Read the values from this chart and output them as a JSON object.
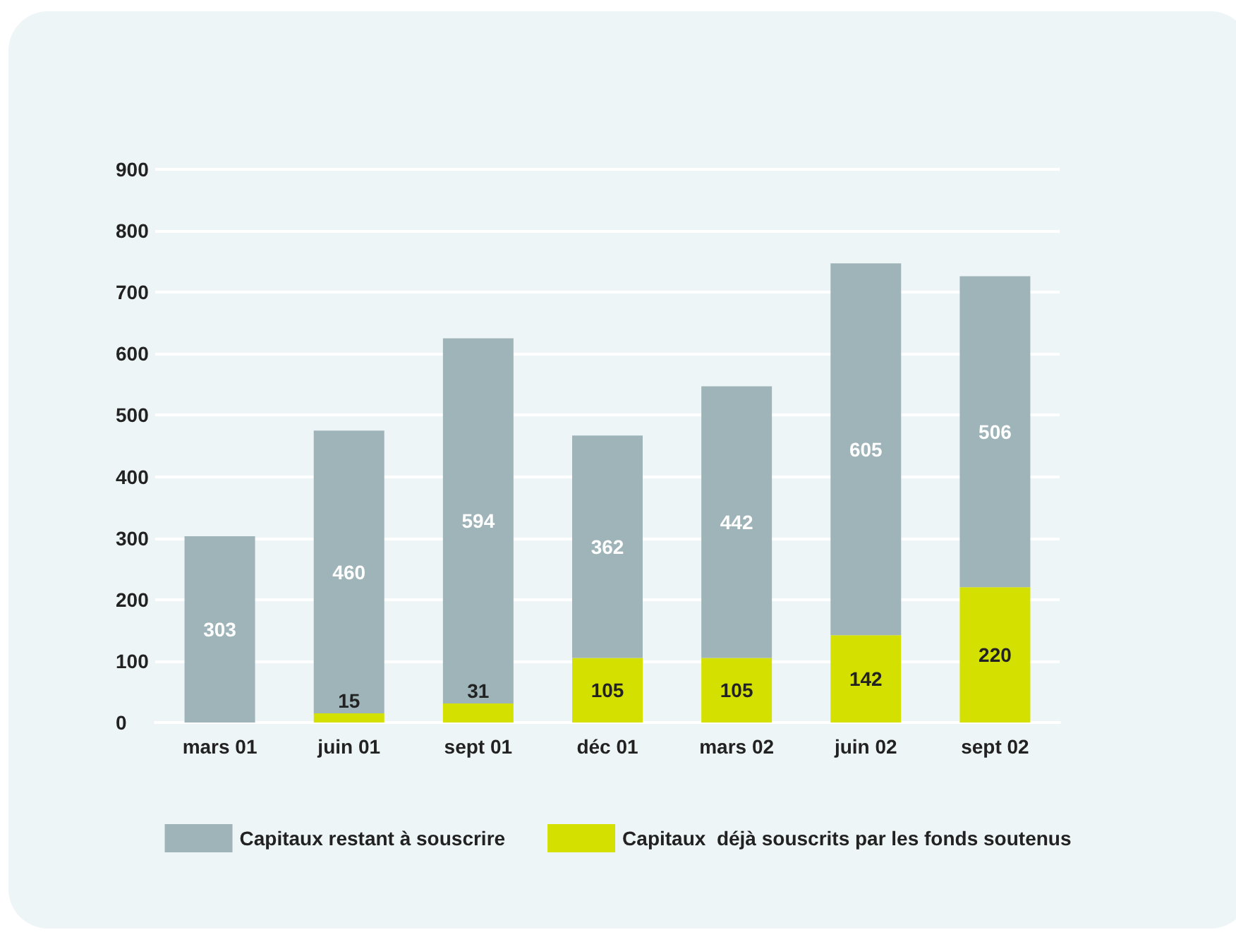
{
  "chart_data": {
    "type": "bar",
    "stacked": true,
    "categories": [
      "mars 01",
      "juin 01",
      "sept 01",
      "déc 01",
      "mars 02",
      "juin 02",
      "sept 02"
    ],
    "series": [
      {
        "name": "Capitaux  déjà souscrits par les fonds soutenus",
        "color": "#d4e000",
        "values": [
          null,
          15,
          31,
          105,
          105,
          142,
          220
        ]
      },
      {
        "name": "Capitaux restant à souscrire",
        "color": "#9fb4b9",
        "values": [
          303,
          460,
          594,
          362,
          442,
          605,
          506
        ]
      }
    ],
    "ylim": [
      0,
      900
    ],
    "yticks": [
      0,
      100,
      200,
      300,
      400,
      500,
      600,
      700,
      800,
      900
    ],
    "grid": "y",
    "legend": "bottom",
    "data_labels": true
  }
}
